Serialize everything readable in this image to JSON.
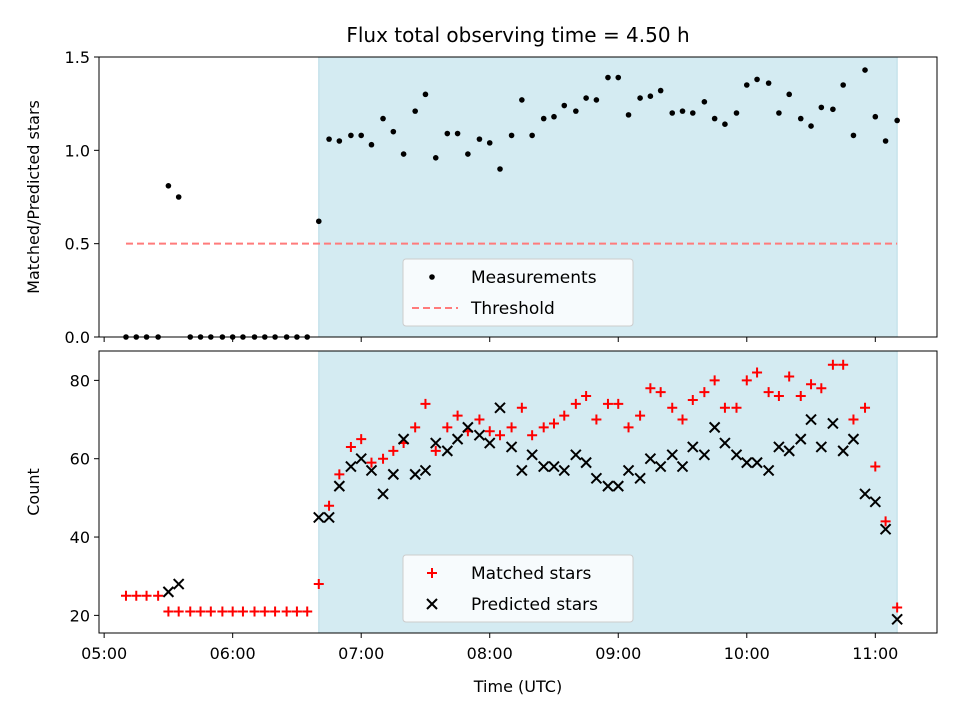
{
  "chart_data": {
    "title": "Flux total observing time = 4.50 h",
    "xlabel": "Time (UTC)",
    "x_ticks": [
      "05:00",
      "06:00",
      "07:00",
      "08:00",
      "09:00",
      "10:00",
      "11:00"
    ],
    "x_range_hours": [
      4.96,
      11.48
    ],
    "observing_window_hours": [
      6.67,
      11.17
    ],
    "colors": {
      "window": "#d4ebf2",
      "threshold": "#ff7b7b",
      "matched": "#ff0000",
      "predicted": "#000000",
      "measurements": "#000000"
    },
    "panels": [
      {
        "type": "scatter",
        "ylabel": "Matched/Predicted stars",
        "ylim": [
          0,
          1.5
        ],
        "y_ticks": [
          "0.0",
          "0.5",
          "1.0",
          "1.5"
        ],
        "legend_placement": "lower-center",
        "threshold": {
          "name": "Threshold",
          "value": 0.5,
          "x_range_hours": [
            5.17,
            11.17
          ]
        },
        "series": [
          {
            "name": "Measurements",
            "x": [
              5.17,
              5.25,
              5.33,
              5.42,
              5.5,
              5.58,
              5.67,
              5.75,
              5.83,
              5.92,
              6.0,
              6.08,
              6.17,
              6.25,
              6.33,
              6.42,
              6.5,
              6.58,
              6.67,
              6.75,
              6.83,
              6.92,
              7.0,
              7.08,
              7.17,
              7.25,
              7.33,
              7.42,
              7.5,
              7.58,
              7.67,
              7.75,
              7.83,
              7.92,
              8.0,
              8.08,
              8.17,
              8.25,
              8.33,
              8.42,
              8.5,
              8.58,
              8.67,
              8.75,
              8.83,
              8.92,
              9.0,
              9.08,
              9.17,
              9.25,
              9.33,
              9.42,
              9.5,
              9.58,
              9.67,
              9.75,
              9.83,
              9.92,
              10.0,
              10.08,
              10.17,
              10.25,
              10.33,
              10.42,
              10.5,
              10.58,
              10.67,
              10.75,
              10.83,
              10.92,
              11.0,
              11.08,
              11.17
            ],
            "y": [
              0,
              0,
              0,
              0,
              0.81,
              0.75,
              0,
              0,
              0,
              0,
              0,
              0,
              0,
              0,
              0,
              0,
              0,
              0,
              0.62,
              1.06,
              1.05,
              1.08,
              1.08,
              1.03,
              1.17,
              1.1,
              0.98,
              1.21,
              1.3,
              0.96,
              1.09,
              1.09,
              0.98,
              1.06,
              1.04,
              0.9,
              1.08,
              1.27,
              1.08,
              1.17,
              1.18,
              1.24,
              1.21,
              1.28,
              1.27,
              1.39,
              1.39,
              1.19,
              1.28,
              1.29,
              1.32,
              1.2,
              1.21,
              1.2,
              1.26,
              1.17,
              1.14,
              1.2,
              1.35,
              1.38,
              1.36,
              1.2,
              1.3,
              1.17,
              1.13,
              1.23,
              1.22,
              1.35,
              1.08,
              1.43,
              1.18,
              1.05,
              1.16
            ]
          }
        ]
      },
      {
        "type": "scatter",
        "ylabel": "Count",
        "ylim": [
          15.5,
          87.5
        ],
        "y_ticks": [
          "20",
          "40",
          "60",
          "80"
        ],
        "legend_placement": "lower-center",
        "series": [
          {
            "name": "Matched stars",
            "marker": "plus",
            "x": [
              5.17,
              5.25,
              5.33,
              5.42,
              5.5,
              5.58,
              5.67,
              5.75,
              5.83,
              5.92,
              6.0,
              6.08,
              6.17,
              6.25,
              6.33,
              6.42,
              6.5,
              6.58,
              6.67,
              6.75,
              6.83,
              6.92,
              7.0,
              7.08,
              7.17,
              7.25,
              7.33,
              7.42,
              7.5,
              7.58,
              7.67,
              7.75,
              7.83,
              7.92,
              8.0,
              8.08,
              8.17,
              8.25,
              8.33,
              8.42,
              8.5,
              8.58,
              8.67,
              8.75,
              8.83,
              8.92,
              9.0,
              9.08,
              9.17,
              9.25,
              9.33,
              9.42,
              9.5,
              9.58,
              9.67,
              9.75,
              9.83,
              9.92,
              10.0,
              10.08,
              10.17,
              10.25,
              10.33,
              10.42,
              10.5,
              10.58,
              10.67,
              10.75,
              10.83,
              10.92,
              11.0,
              11.08,
              11.17
            ],
            "y": [
              25,
              25,
              25,
              25,
              21,
              21,
              21,
              21,
              21,
              21,
              21,
              21,
              21,
              21,
              21,
              21,
              21,
              21,
              28,
              48,
              56,
              63,
              65,
              59,
              60,
              62,
              64,
              68,
              74,
              62,
              68,
              71,
              67,
              70,
              67,
              66,
              68,
              73,
              66,
              68,
              69,
              71,
              74,
              76,
              70,
              74,
              74,
              68,
              71,
              78,
              77,
              73,
              70,
              75,
              77,
              80,
              73,
              73,
              80,
              82,
              77,
              76,
              81,
              76,
              79,
              78,
              84,
              84,
              70,
              73,
              58,
              44,
              22
            ]
          },
          {
            "name": "Predicted stars",
            "marker": "x",
            "x": [
              5.5,
              5.58,
              6.67,
              6.75,
              6.83,
              6.92,
              7.0,
              7.08,
              7.17,
              7.25,
              7.33,
              7.42,
              7.5,
              7.58,
              7.67,
              7.75,
              7.83,
              7.92,
              8.0,
              8.08,
              8.17,
              8.25,
              8.33,
              8.42,
              8.5,
              8.58,
              8.67,
              8.75,
              8.83,
              8.92,
              9.0,
              9.08,
              9.17,
              9.25,
              9.33,
              9.42,
              9.5,
              9.58,
              9.67,
              9.75,
              9.83,
              9.92,
              10.0,
              10.08,
              10.17,
              10.25,
              10.33,
              10.42,
              10.5,
              10.58,
              10.67,
              10.75,
              10.83,
              10.92,
              11.0,
              11.08,
              11.17
            ],
            "y": [
              26,
              28,
              45,
              45,
              53,
              58,
              60,
              57,
              51,
              56,
              65,
              56,
              57,
              64,
              62,
              65,
              68,
              66,
              64,
              73,
              63,
              57,
              61,
              58,
              58,
              57,
              61,
              59,
              55,
              53,
              53,
              57,
              55,
              60,
              58,
              61,
              58,
              63,
              61,
              68,
              64,
              61,
              59,
              59,
              57,
              63,
              62,
              65,
              70,
              63,
              69,
              62,
              65,
              51,
              49,
              42,
              19
            ]
          }
        ]
      }
    ]
  }
}
